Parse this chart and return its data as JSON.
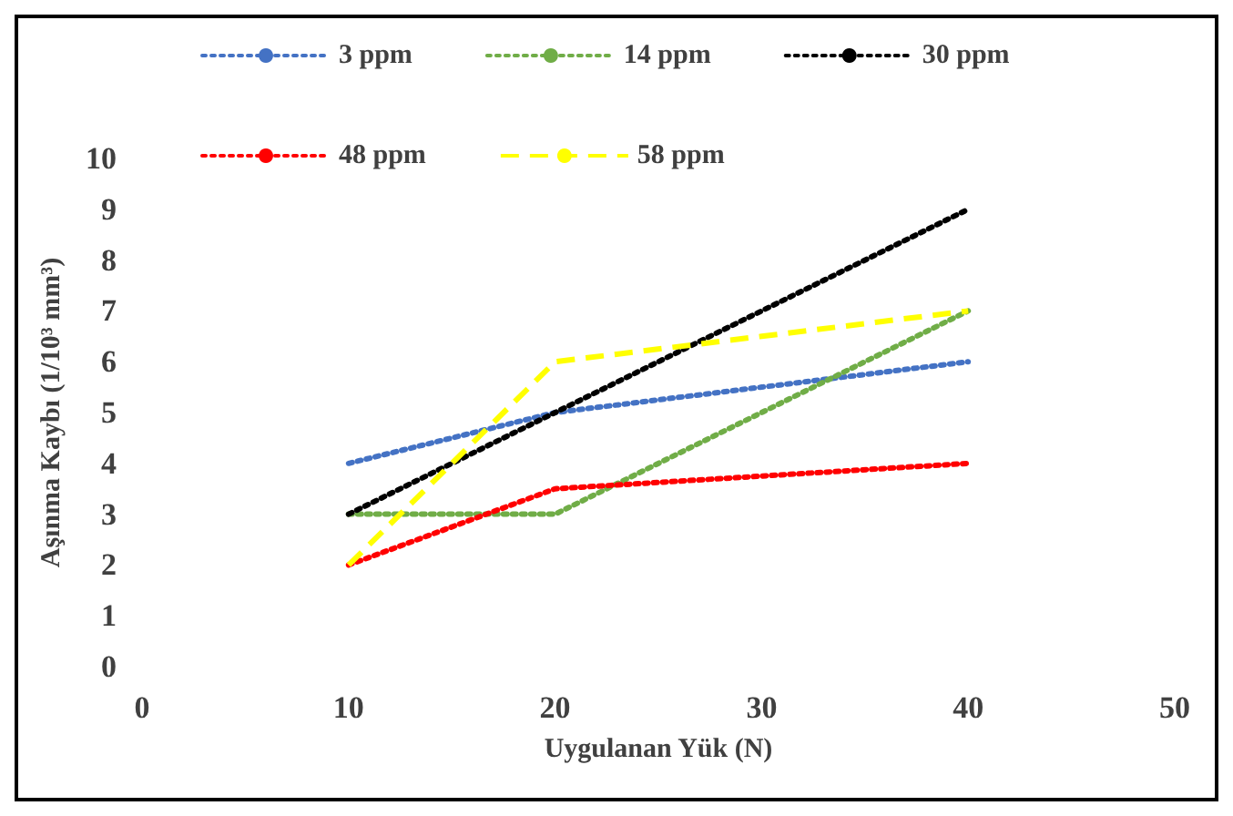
{
  "chart_data": {
    "type": "line",
    "xlabel": "Uygulanan Yük (N)",
    "ylabel": "Aşınma Kaybı (1/10³ mm³)",
    "x": [
      10,
      20,
      30,
      40
    ],
    "series": [
      {
        "name": "3 ppm",
        "color": "#4472c4",
        "values": [
          4,
          5,
          5.5,
          6
        ],
        "line_style": "dotted"
      },
      {
        "name": "14 ppm",
        "color": "#70ad47",
        "values": [
          3,
          3,
          5,
          7
        ],
        "line_style": "dotted"
      },
      {
        "name": "30 ppm",
        "color": "#000000",
        "values": [
          3,
          5,
          7,
          9
        ],
        "line_style": "dotted"
      },
      {
        "name": "48 ppm",
        "color": "#ff0000",
        "values": [
          2,
          3.5,
          3.75,
          4
        ],
        "line_style": "dotted"
      },
      {
        "name": "58 ppm",
        "color": "#ffff00",
        "values": [
          2,
          6,
          6.5,
          7
        ],
        "line_style": "dashed"
      }
    ],
    "xlim": [
      0,
      50
    ],
    "xticks": [
      0,
      10,
      20,
      30,
      40,
      50
    ],
    "ylim": [
      0,
      10
    ],
    "yticks": [
      0,
      1,
      2,
      3,
      4,
      5,
      6,
      7,
      8,
      9,
      10
    ],
    "grid": false,
    "legend": "top",
    "marker": "none"
  }
}
